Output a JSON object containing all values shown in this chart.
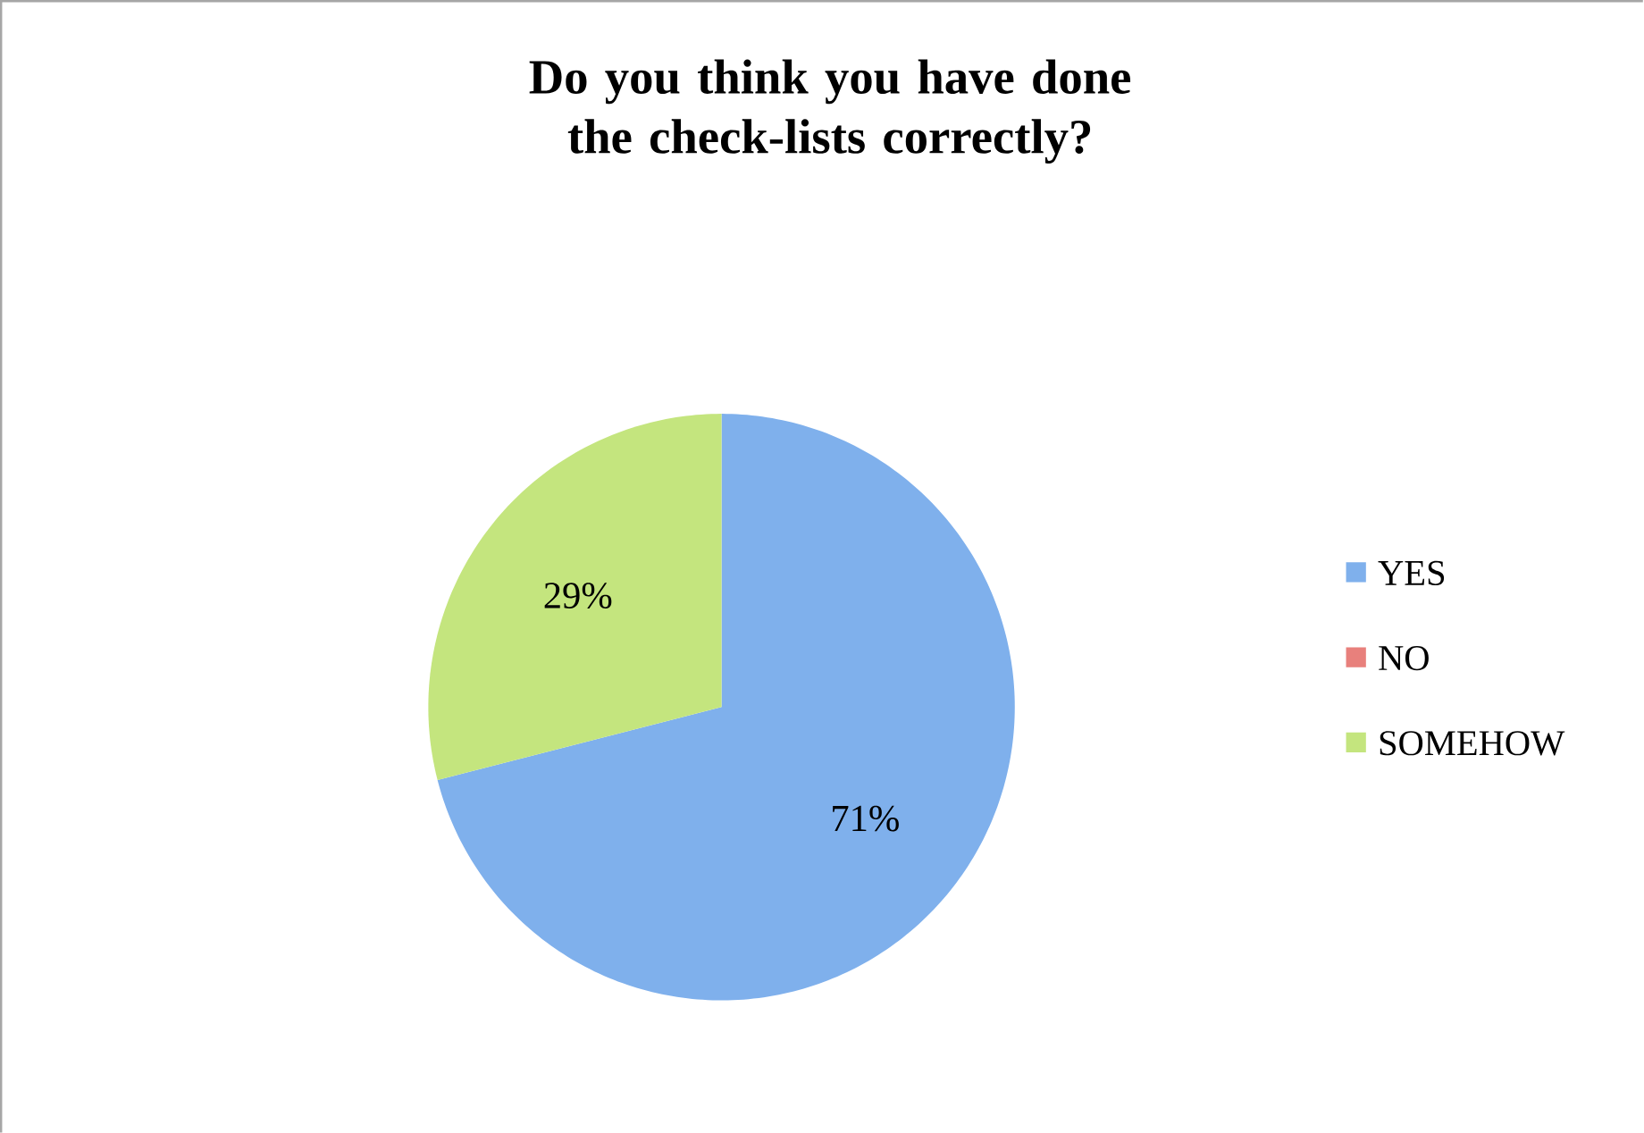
{
  "chart_data": {
    "type": "pie",
    "title": "Do you think you have done the check-lists correctly?",
    "categories": [
      "YES",
      "NO",
      "SOMEHOW"
    ],
    "values": [
      71,
      0,
      29
    ],
    "colors": [
      "#7fb0ec",
      "#e8807c",
      "#c4e57e"
    ],
    "value_labels": [
      "71%",
      null,
      "29%"
    ],
    "legend": "right"
  }
}
